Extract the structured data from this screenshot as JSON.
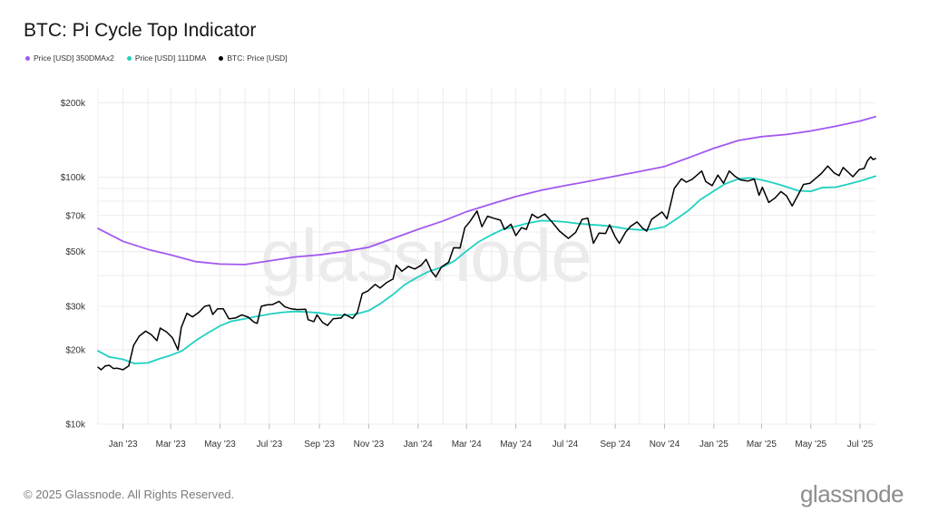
{
  "chart_data": {
    "type": "line",
    "title": "BTC: Pi Cycle Top Indicator",
    "y_scale": "log",
    "ylim": [
      10000,
      230000
    ],
    "y_ticks": [
      {
        "value": 10000,
        "label": "$10k"
      },
      {
        "value": 20000,
        "label": "$20k"
      },
      {
        "value": 30000,
        "label": "$30k"
      },
      {
        "value": 50000,
        "label": "$50k"
      },
      {
        "value": 70000,
        "label": "$70k"
      },
      {
        "value": 100000,
        "label": "$100k"
      },
      {
        "value": 200000,
        "label": "$200k"
      }
    ],
    "x_range": [
      "2022-12-01",
      "2025-07-20"
    ],
    "x_ticks": [
      {
        "date": "2023-01-01",
        "label": "Jan '23"
      },
      {
        "date": "2023-03-01",
        "label": "Mar '23"
      },
      {
        "date": "2023-05-01",
        "label": "May '23"
      },
      {
        "date": "2023-07-01",
        "label": "Jul '23"
      },
      {
        "date": "2023-09-01",
        "label": "Sep '23"
      },
      {
        "date": "2023-11-01",
        "label": "Nov '23"
      },
      {
        "date": "2024-01-01",
        "label": "Jan '24"
      },
      {
        "date": "2024-03-01",
        "label": "Mar '24"
      },
      {
        "date": "2024-05-01",
        "label": "May '24"
      },
      {
        "date": "2024-07-01",
        "label": "Jul '24"
      },
      {
        "date": "2024-09-01",
        "label": "Sep '24"
      },
      {
        "date": "2024-11-01",
        "label": "Nov '24"
      },
      {
        "date": "2025-01-01",
        "label": "Jan '25"
      },
      {
        "date": "2025-03-01",
        "label": "Mar '25"
      },
      {
        "date": "2025-05-01",
        "label": "May '25"
      },
      {
        "date": "2025-07-01",
        "label": "Jul '25"
      }
    ],
    "grid": true,
    "legend_position": "top-left",
    "series": [
      {
        "name": "Price [USD] 350DMAx2",
        "color": "#a259f0",
        "points": [
          [
            "2022-12-01",
            62000
          ],
          [
            "2023-01-01",
            55000
          ],
          [
            "2023-02-01",
            51000
          ],
          [
            "2023-03-01",
            48500
          ],
          [
            "2023-04-01",
            45500
          ],
          [
            "2023-05-01",
            44500
          ],
          [
            "2023-06-01",
            44300
          ],
          [
            "2023-07-01",
            45800
          ],
          [
            "2023-08-01",
            47500
          ],
          [
            "2023-09-01",
            48500
          ],
          [
            "2023-10-01",
            50000
          ],
          [
            "2023-11-01",
            52000
          ],
          [
            "2023-12-01",
            56500
          ],
          [
            "2024-01-01",
            61500
          ],
          [
            "2024-02-01",
            66500
          ],
          [
            "2024-03-01",
            72500
          ],
          [
            "2024-04-01",
            78000
          ],
          [
            "2024-05-01",
            83500
          ],
          [
            "2024-06-01",
            88500
          ],
          [
            "2024-07-01",
            92500
          ],
          [
            "2024-08-01",
            96500
          ],
          [
            "2024-09-01",
            101000
          ],
          [
            "2024-10-01",
            105500
          ],
          [
            "2024-11-01",
            110500
          ],
          [
            "2024-12-01",
            120000
          ],
          [
            "2025-01-01",
            131000
          ],
          [
            "2025-02-01",
            141000
          ],
          [
            "2025-03-01",
            146000
          ],
          [
            "2025-04-01",
            149000
          ],
          [
            "2025-05-01",
            154000
          ],
          [
            "2025-06-01",
            161000
          ],
          [
            "2025-07-01",
            169000
          ],
          [
            "2025-07-20",
            176000
          ]
        ]
      },
      {
        "name": "Price [USD] 111DMA",
        "color": "#1fd1c1",
        "points": [
          [
            "2022-12-01",
            19800
          ],
          [
            "2022-12-15",
            18700
          ],
          [
            "2023-01-01",
            18300
          ],
          [
            "2023-01-15",
            17600
          ],
          [
            "2023-02-01",
            17700
          ],
          [
            "2023-02-15",
            18400
          ],
          [
            "2023-03-01",
            19000
          ],
          [
            "2023-03-15",
            19800
          ],
          [
            "2023-04-01",
            21800
          ],
          [
            "2023-04-15",
            23300
          ],
          [
            "2023-05-01",
            25000
          ],
          [
            "2023-05-15",
            26100
          ],
          [
            "2023-06-01",
            26700
          ],
          [
            "2023-06-15",
            27300
          ],
          [
            "2023-07-01",
            27900
          ],
          [
            "2023-07-15",
            28300
          ],
          [
            "2023-08-01",
            28600
          ],
          [
            "2023-08-15",
            28500
          ],
          [
            "2023-09-01",
            28200
          ],
          [
            "2023-09-15",
            27700
          ],
          [
            "2023-10-01",
            27600
          ],
          [
            "2023-10-15",
            27800
          ],
          [
            "2023-11-01",
            28800
          ],
          [
            "2023-11-15",
            30700
          ],
          [
            "2023-12-01",
            33500
          ],
          [
            "2023-12-15",
            36600
          ],
          [
            "2024-01-01",
            39500
          ],
          [
            "2024-01-15",
            41600
          ],
          [
            "2024-02-01",
            43400
          ],
          [
            "2024-02-15",
            45800
          ],
          [
            "2024-03-01",
            50200
          ],
          [
            "2024-03-15",
            54500
          ],
          [
            "2024-04-01",
            58500
          ],
          [
            "2024-04-15",
            61500
          ],
          [
            "2024-05-01",
            63300
          ],
          [
            "2024-05-15",
            65000
          ],
          [
            "2024-06-01",
            66700
          ],
          [
            "2024-06-15",
            66500
          ],
          [
            "2024-07-01",
            65900
          ],
          [
            "2024-07-15",
            65000
          ],
          [
            "2024-08-01",
            64300
          ],
          [
            "2024-08-15",
            63800
          ],
          [
            "2024-09-01",
            62900
          ],
          [
            "2024-09-15",
            61800
          ],
          [
            "2024-10-01",
            61200
          ],
          [
            "2024-10-15",
            61400
          ],
          [
            "2024-11-01",
            63000
          ],
          [
            "2024-11-15",
            67500
          ],
          [
            "2024-12-01",
            73500
          ],
          [
            "2024-12-15",
            81000
          ],
          [
            "2025-01-01",
            88000
          ],
          [
            "2025-01-15",
            94000
          ],
          [
            "2025-02-01",
            98500
          ],
          [
            "2025-02-15",
            99300
          ],
          [
            "2025-03-01",
            97500
          ],
          [
            "2025-03-15",
            95000
          ],
          [
            "2025-04-01",
            91500
          ],
          [
            "2025-04-15",
            88200
          ],
          [
            "2025-05-01",
            87700
          ],
          [
            "2025-05-15",
            90800
          ],
          [
            "2025-06-01",
            91200
          ],
          [
            "2025-06-15",
            93500
          ],
          [
            "2025-07-01",
            96500
          ],
          [
            "2025-07-20",
            101000
          ]
        ]
      },
      {
        "name": "BTC: Price [USD]",
        "color": "#000000",
        "points": [
          [
            "2022-12-01",
            17000
          ],
          [
            "2022-12-05",
            16600
          ],
          [
            "2022-12-10",
            17200
          ],
          [
            "2022-12-15",
            17300
          ],
          [
            "2022-12-20",
            16800
          ],
          [
            "2022-12-25",
            16850
          ],
          [
            "2023-01-01",
            16600
          ],
          [
            "2023-01-08",
            17200
          ],
          [
            "2023-01-14",
            20800
          ],
          [
            "2023-01-21",
            22700
          ],
          [
            "2023-01-29",
            23800
          ],
          [
            "2023-02-05",
            23000
          ],
          [
            "2023-02-12",
            21800
          ],
          [
            "2023-02-16",
            24500
          ],
          [
            "2023-02-24",
            23600
          ],
          [
            "2023-03-03",
            22400
          ],
          [
            "2023-03-10",
            20000
          ],
          [
            "2023-03-14",
            24600
          ],
          [
            "2023-03-21",
            28100
          ],
          [
            "2023-03-28",
            27200
          ],
          [
            "2023-04-05",
            28400
          ],
          [
            "2023-04-12",
            30000
          ],
          [
            "2023-04-18",
            30300
          ],
          [
            "2023-04-22",
            27800
          ],
          [
            "2023-04-28",
            29300
          ],
          [
            "2023-05-05",
            29300
          ],
          [
            "2023-05-12",
            26700
          ],
          [
            "2023-05-20",
            26900
          ],
          [
            "2023-05-28",
            27700
          ],
          [
            "2023-06-05",
            27100
          ],
          [
            "2023-06-12",
            25900
          ],
          [
            "2023-06-16",
            25600
          ],
          [
            "2023-06-21",
            30000
          ],
          [
            "2023-06-28",
            30400
          ],
          [
            "2023-07-05",
            30500
          ],
          [
            "2023-07-13",
            31400
          ],
          [
            "2023-07-20",
            29900
          ],
          [
            "2023-07-28",
            29300
          ],
          [
            "2023-08-05",
            29100
          ],
          [
            "2023-08-15",
            29200
          ],
          [
            "2023-08-18",
            26500
          ],
          [
            "2023-08-25",
            26000
          ],
          [
            "2023-08-29",
            27700
          ],
          [
            "2023-09-05",
            25800
          ],
          [
            "2023-09-11",
            25100
          ],
          [
            "2023-09-18",
            26700
          ],
          [
            "2023-09-28",
            26900
          ],
          [
            "2023-10-02",
            27900
          ],
          [
            "2023-10-12",
            26800
          ],
          [
            "2023-10-18",
            28400
          ],
          [
            "2023-10-24",
            33800
          ],
          [
            "2023-10-31",
            34600
          ],
          [
            "2023-11-09",
            36800
          ],
          [
            "2023-11-15",
            35600
          ],
          [
            "2023-11-23",
            37400
          ],
          [
            "2023-12-01",
            38700
          ],
          [
            "2023-12-05",
            44000
          ],
          [
            "2023-12-12",
            41600
          ],
          [
            "2023-12-20",
            43500
          ],
          [
            "2023-12-28",
            42500
          ],
          [
            "2024-01-05",
            44000
          ],
          [
            "2024-01-11",
            46500
          ],
          [
            "2024-01-18",
            41400
          ],
          [
            "2024-01-23",
            39500
          ],
          [
            "2024-01-30",
            43300
          ],
          [
            "2024-02-08",
            45300
          ],
          [
            "2024-02-14",
            51800
          ],
          [
            "2024-02-22",
            51700
          ],
          [
            "2024-02-28",
            62500
          ],
          [
            "2024-03-05",
            66000
          ],
          [
            "2024-03-14",
            73000
          ],
          [
            "2024-03-20",
            63000
          ],
          [
            "2024-03-27",
            69500
          ],
          [
            "2024-04-05",
            68000
          ],
          [
            "2024-04-12",
            67000
          ],
          [
            "2024-04-17",
            61500
          ],
          [
            "2024-04-25",
            64500
          ],
          [
            "2024-05-01",
            58000
          ],
          [
            "2024-05-08",
            62500
          ],
          [
            "2024-05-14",
            61500
          ],
          [
            "2024-05-21",
            70800
          ],
          [
            "2024-05-28",
            68400
          ],
          [
            "2024-06-06",
            71000
          ],
          [
            "2024-06-14",
            66300
          ],
          [
            "2024-06-24",
            60500
          ],
          [
            "2024-07-05",
            56500
          ],
          [
            "2024-07-14",
            59800
          ],
          [
            "2024-07-22",
            67500
          ],
          [
            "2024-07-29",
            68300
          ],
          [
            "2024-08-05",
            54000
          ],
          [
            "2024-08-12",
            59400
          ],
          [
            "2024-08-20",
            59200
          ],
          [
            "2024-08-25",
            64200
          ],
          [
            "2024-09-01",
            57300
          ],
          [
            "2024-09-06",
            54000
          ],
          [
            "2024-09-14",
            60000
          ],
          [
            "2024-09-20",
            63200
          ],
          [
            "2024-09-28",
            65900
          ],
          [
            "2024-10-05",
            62100
          ],
          [
            "2024-10-10",
            60500
          ],
          [
            "2024-10-16",
            67500
          ],
          [
            "2024-10-29",
            72300
          ],
          [
            "2024-11-04",
            67900
          ],
          [
            "2024-11-08",
            76500
          ],
          [
            "2024-11-13",
            90000
          ],
          [
            "2024-11-22",
            98500
          ],
          [
            "2024-11-28",
            95500
          ],
          [
            "2024-12-05",
            98000
          ],
          [
            "2024-12-17",
            106000
          ],
          [
            "2024-12-22",
            96000
          ],
          [
            "2024-12-30",
            92500
          ],
          [
            "2025-01-06",
            102000
          ],
          [
            "2025-01-13",
            94500
          ],
          [
            "2025-01-20",
            106000
          ],
          [
            "2025-01-27",
            101000
          ],
          [
            "2025-02-03",
            97500
          ],
          [
            "2025-02-12",
            96500
          ],
          [
            "2025-02-20",
            98300
          ],
          [
            "2025-02-26",
            84500
          ],
          [
            "2025-03-02",
            91000
          ],
          [
            "2025-03-10",
            79000
          ],
          [
            "2025-03-18",
            82500
          ],
          [
            "2025-03-25",
            87500
          ],
          [
            "2025-04-01",
            84000
          ],
          [
            "2025-04-08",
            76500
          ],
          [
            "2025-04-15",
            84500
          ],
          [
            "2025-04-22",
            93500
          ],
          [
            "2025-04-30",
            94500
          ],
          [
            "2025-05-08",
            99500
          ],
          [
            "2025-05-14",
            103500
          ],
          [
            "2025-05-22",
            111000
          ],
          [
            "2025-05-30",
            104000
          ],
          [
            "2025-06-05",
            101500
          ],
          [
            "2025-06-10",
            109500
          ],
          [
            "2025-06-22",
            100500
          ],
          [
            "2025-06-30",
            107500
          ],
          [
            "2025-07-06",
            108500
          ],
          [
            "2025-07-10",
            116500
          ],
          [
            "2025-07-14",
            121000
          ],
          [
            "2025-07-17",
            118000
          ],
          [
            "2025-07-20",
            119000
          ]
        ]
      }
    ]
  },
  "watermark": "glassnode",
  "footer": {
    "copyright": "© 2025 Glassnode. All Rights Reserved.",
    "logo": "glassnode"
  }
}
